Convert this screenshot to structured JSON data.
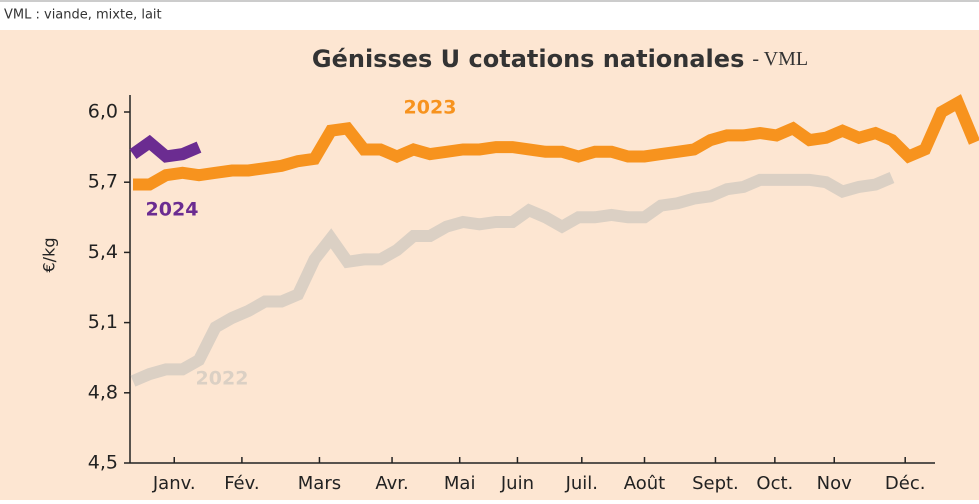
{
  "caption": "VML : viande, mixte, lait",
  "chart_data": {
    "type": "line",
    "title": "Génisses U cotations nationales",
    "subtitle": "- VML",
    "y_label": "€/kg",
    "x": [
      1,
      2,
      3,
      4,
      5,
      6,
      7,
      8,
      9,
      10,
      11,
      12,
      13,
      14,
      15,
      16,
      17,
      18,
      19,
      20,
      21,
      22,
      23,
      24,
      25,
      26,
      27,
      28,
      29,
      30,
      31,
      32,
      33,
      34,
      35,
      36,
      37,
      38,
      39,
      40,
      41,
      42,
      43,
      44,
      45,
      46,
      47,
      48,
      49,
      50,
      51,
      52
    ],
    "xlim": [
      1,
      52
    ],
    "xticks": [
      {
        "value": 3.5,
        "label": "Janv."
      },
      {
        "value": 7.6,
        "label": "Fév."
      },
      {
        "value": 12.3,
        "label": "Mars"
      },
      {
        "value": 16.7,
        "label": "Avr."
      },
      {
        "value": 20.8,
        "label": "Mai"
      },
      {
        "value": 24.3,
        "label": "Juin"
      },
      {
        "value": 28.2,
        "label": "Juil."
      },
      {
        "value": 32,
        "label": "Août"
      },
      {
        "value": 36.3,
        "label": "Sept."
      },
      {
        "value": 39.9,
        "label": "Oct."
      },
      {
        "value": 43.5,
        "label": "Nov"
      },
      {
        "value": 47.8,
        "label": "Déc."
      }
    ],
    "ylim": [
      4.5,
      6.0
    ],
    "yticks": [
      {
        "value": 4.5,
        "label": "4,5"
      },
      {
        "value": 4.8,
        "label": "4,8"
      },
      {
        "value": 5.1,
        "label": "5,1"
      },
      {
        "value": 5.4,
        "label": "5,4"
      },
      {
        "value": 5.7,
        "label": "5,7"
      },
      {
        "value": 6.0,
        "label": "6,0"
      }
    ],
    "series": [
      {
        "name": "2022",
        "color": "#dbd0c4",
        "values": [
          4.85,
          4.88,
          4.9,
          4.9,
          4.94,
          5.08,
          5.12,
          5.15,
          5.19,
          5.19,
          5.22,
          5.37,
          5.46,
          5.36,
          5.37,
          5.37,
          5.41,
          5.47,
          5.47,
          5.51,
          5.53,
          5.52,
          5.53,
          5.53,
          5.58,
          5.55,
          5.51,
          5.55,
          5.55,
          5.56,
          5.55,
          5.55,
          5.6,
          5.61,
          5.63,
          5.64,
          5.67,
          5.68,
          5.71,
          5.71,
          5.71,
          5.71,
          5.7,
          5.66,
          5.68,
          5.69,
          5.72,
          null,
          null,
          null,
          null,
          null
        ]
      },
      {
        "name": "2023",
        "color": "#f7931e",
        "values": [
          5.69,
          5.69,
          5.73,
          5.74,
          5.73,
          5.74,
          5.75,
          5.75,
          5.76,
          5.77,
          5.79,
          5.8,
          5.92,
          5.93,
          5.84,
          5.84,
          5.81,
          5.84,
          5.82,
          5.83,
          5.84,
          5.84,
          5.85,
          5.85,
          5.84,
          5.83,
          5.83,
          5.81,
          5.83,
          5.83,
          5.81,
          5.81,
          5.82,
          5.83,
          5.84,
          5.88,
          5.9,
          5.9,
          5.91,
          5.9,
          5.93,
          5.88,
          5.89,
          5.92,
          5.89,
          5.91,
          5.88,
          5.81,
          5.84,
          6.0,
          6.04,
          5.87
        ]
      },
      {
        "name": "2024",
        "color": "#6b2c91",
        "values": [
          5.82,
          5.87,
          5.81,
          5.82,
          5.85,
          null,
          null,
          null,
          null,
          null,
          null,
          null,
          null,
          null,
          null,
          null,
          null,
          null,
          null,
          null,
          null,
          null,
          null,
          null,
          null,
          null,
          null,
          null,
          null,
          null,
          null,
          null,
          null,
          null,
          null,
          null,
          null,
          null,
          null,
          null,
          null,
          null,
          null,
          null,
          null,
          null,
          null,
          null,
          null,
          null,
          null,
          null
        ]
      }
    ]
  }
}
